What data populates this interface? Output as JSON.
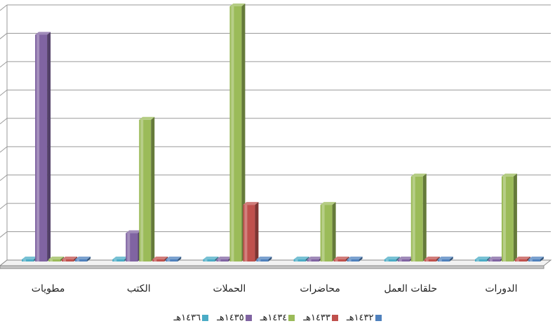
{
  "chart_data": {
    "type": "bar",
    "style": "3d-column",
    "categories": [
      "الدورات",
      "حلقات العمل",
      "محاضرات",
      "الحملات",
      "الكتب",
      "مطويات"
    ],
    "category_order": "right-to-left",
    "ylim": [
      0,
      9
    ],
    "grid": true,
    "legend_position": "bottom",
    "series": [
      {
        "name": "١٤٣٢هـ",
        "color": "#4F81BD",
        "values": [
          0,
          0,
          0,
          0,
          0,
          0
        ]
      },
      {
        "name": "١٤٣٣هـ",
        "color": "#C0504D",
        "values": [
          0,
          0,
          0,
          2,
          0,
          0
        ]
      },
      {
        "name": "١٤٣٤هـ",
        "color": "#9BBB59",
        "values": [
          3,
          3,
          2,
          9,
          5,
          0
        ]
      },
      {
        "name": "١٤٣٥هـ",
        "color": "#8064A2",
        "values": [
          0,
          0,
          0,
          0,
          1,
          8
        ]
      },
      {
        "name": "١٤٣٦هـ",
        "color": "#4BACC6",
        "values": [
          0,
          0,
          0,
          0,
          0,
          0
        ]
      }
    ]
  }
}
